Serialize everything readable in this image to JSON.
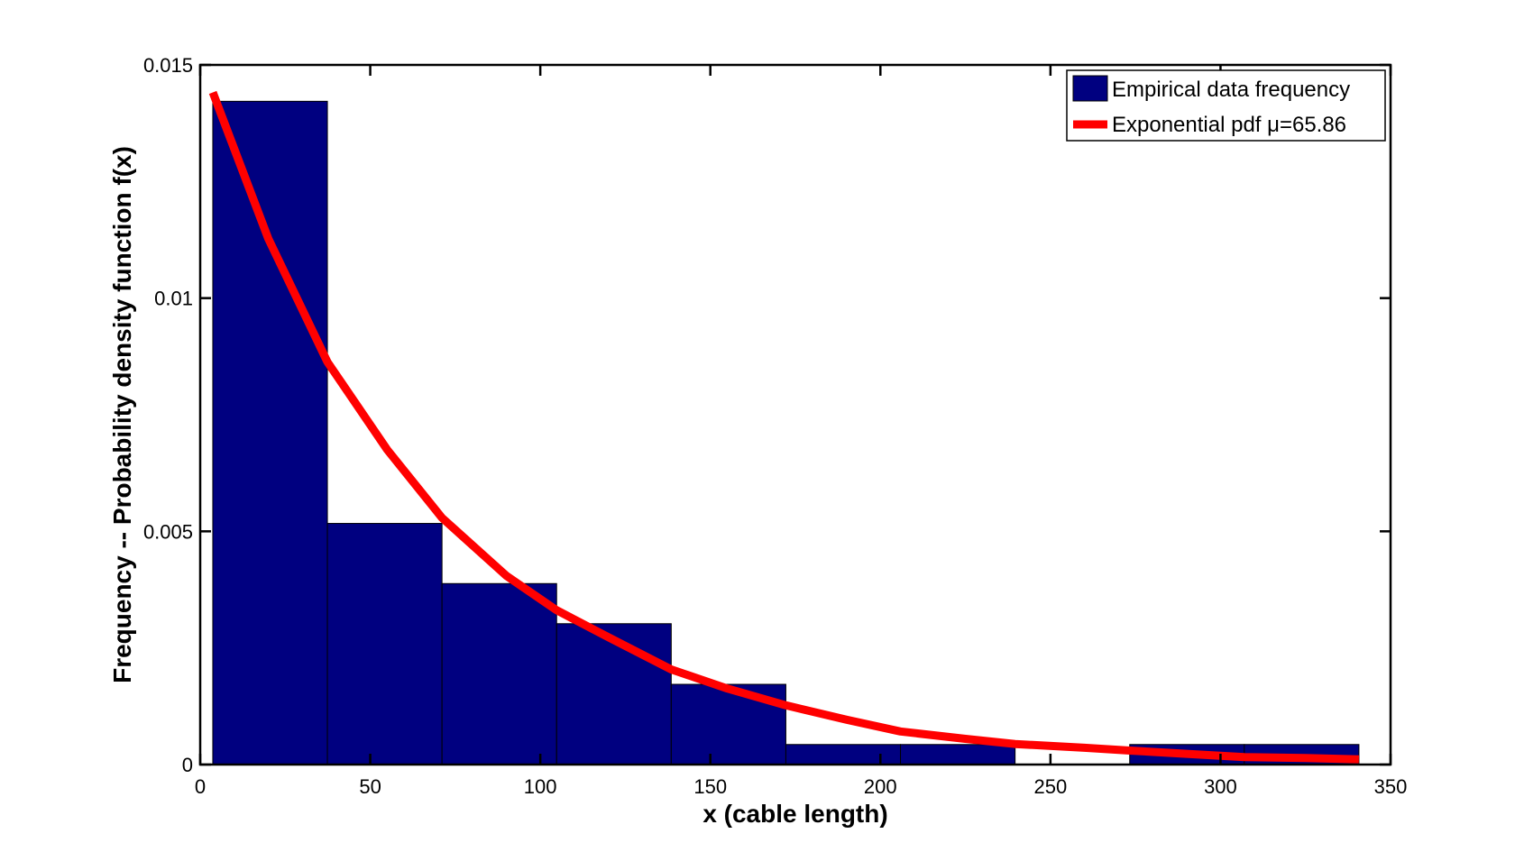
{
  "chart_data": {
    "type": "bar",
    "title": "",
    "xlabel": "x (cable length)",
    "ylabel": "Frequency -- Probability density function f(x)",
    "xlim": [
      0,
      350
    ],
    "ylim": [
      0,
      0.015
    ],
    "xticks": [
      0,
      50,
      100,
      150,
      200,
      250,
      300,
      350
    ],
    "xtick_labels": [
      "0",
      "50",
      "100",
      "150",
      "200",
      "250",
      "300",
      "350"
    ],
    "yticks": [
      0,
      0.005,
      0.01,
      0.015
    ],
    "ytick_labels": [
      "0",
      "0.005",
      "0.01",
      "0.015"
    ],
    "grid": false,
    "legend_position": "top-right",
    "series": [
      {
        "name": "Empirical data frequency",
        "type": "bar",
        "color": "#000080",
        "bins": [
          {
            "x0": 3.7,
            "x1": 37.4,
            "value": 0.01422
          },
          {
            "x0": 37.4,
            "x1": 71.1,
            "value": 0.00517
          },
          {
            "x0": 71.1,
            "x1": 104.8,
            "value": 0.00388
          },
          {
            "x0": 104.8,
            "x1": 138.5,
            "value": 0.00302
          },
          {
            "x0": 138.5,
            "x1": 172.2,
            "value": 0.00172
          },
          {
            "x0": 172.2,
            "x1": 205.9,
            "value": 0.00043
          },
          {
            "x0": 205.9,
            "x1": 239.6,
            "value": 0.00043
          },
          {
            "x0": 239.6,
            "x1": 273.3,
            "value": 0
          },
          {
            "x0": 273.3,
            "x1": 307.0,
            "value": 0.00043
          },
          {
            "x0": 307.0,
            "x1": 340.7,
            "value": 0.00043
          }
        ]
      },
      {
        "name": "Exponential pdf μ=65.86",
        "type": "line",
        "color": "#ff0000",
        "mu": 65.86,
        "x": [
          3.7,
          20,
          37.4,
          55,
          71.1,
          90,
          104.8,
          120,
          138.5,
          155,
          172.2,
          190,
          205.9,
          225,
          239.6,
          260,
          273.3,
          290,
          307.0,
          325,
          340.7
        ],
        "y": [
          0.01441,
          0.01128,
          0.00863,
          0.00675,
          0.00529,
          0.00405,
          0.00331,
          0.00273,
          0.00204,
          0.00163,
          0.00127,
          0.00096,
          0.00071,
          0.00055,
          0.00044,
          0.00036,
          0.0003,
          0.00023,
          0.00016,
          0.00014,
          0.00011
        ]
      }
    ]
  }
}
